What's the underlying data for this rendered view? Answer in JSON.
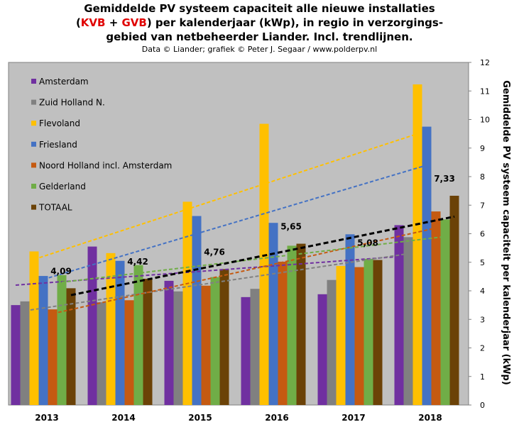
{
  "title": {
    "line1": "Gemiddelde  PV systeem capaciteit alle nieuwe installaties",
    "line2_open": "(",
    "line2_red1": "KVB",
    "line2_plus": " + ",
    "line2_red2": "GVB",
    "line2_rest": ") per kalenderjaar (kWp), in regio in verzorgings-",
    "line3": "gebied van netbeheerder Liander. Incl. trendlijnen."
  },
  "subtitle": "Data © Liander; grafiek © Peter J. Segaar / www.polderpv.nl",
  "chart_data": {
    "type": "bar",
    "categories": [
      "2013",
      "2014",
      "2015",
      "2016",
      "2017",
      "2018"
    ],
    "ylabel": "Gemiddelde PV systeem capaciteit per kalenderjaar (kWp)",
    "ylim": [
      0,
      12
    ],
    "yticks": [
      "0",
      "1",
      "2",
      "3",
      "4",
      "5",
      "6",
      "7",
      "8",
      "9",
      "10",
      "11",
      "12"
    ],
    "grid": false,
    "legend_position": "top-left",
    "series": [
      {
        "name": "Amsterdam",
        "color": "#7030a0",
        "values": [
          3.5,
          5.55,
          4.35,
          3.78,
          3.88,
          6.3
        ]
      },
      {
        "name": "Zuid Holland N.",
        "color": "#808080",
        "values": [
          3.63,
          3.6,
          3.98,
          4.07,
          4.38,
          5.88
        ]
      },
      {
        "name": "Flevoland",
        "color": "#ffc000",
        "values": [
          5.38,
          5.32,
          7.12,
          9.85,
          4.87,
          11.23
        ]
      },
      {
        "name": "Friesland",
        "color": "#4472c4",
        "values": [
          4.52,
          5.05,
          6.62,
          6.38,
          5.98,
          9.75
        ]
      },
      {
        "name": "Noord Holland incl. Amsterdam",
        "color": "#c55a11",
        "values": [
          3.35,
          3.67,
          4.18,
          5.02,
          4.83,
          6.78
        ]
      },
      {
        "name": "Gelderland",
        "color": "#70ad47",
        "values": [
          4.55,
          4.9,
          4.48,
          5.58,
          5.12,
          6.5
        ]
      },
      {
        "name": "TOTAAL",
        "color": "#6b4207",
        "values": [
          4.09,
          4.42,
          4.76,
          5.65,
          5.08,
          7.33
        ]
      }
    ],
    "total_labels": [
      "4,09",
      "4,42",
      "4,76",
      "5,65",
      "5,08",
      "7,33"
    ],
    "trendlines": [
      {
        "series": "Amsterdam",
        "color": "#7030a0",
        "start": 4.2,
        "end": 5.2
      },
      {
        "series": "Zuid Holland N.",
        "color": "#808080",
        "start": 3.3,
        "end": 5.3
      },
      {
        "series": "Flevoland",
        "color": "#ffc000",
        "start": 5.1,
        "end": 9.5
      },
      {
        "series": "Friesland",
        "color": "#4472c4",
        "start": 4.4,
        "end": 8.4
      },
      {
        "series": "Noord Holland incl. Amsterdam",
        "color": "#c55a11",
        "start": 3.2,
        "end": 6.2
      },
      {
        "series": "Gelderland",
        "color": "#70ad47",
        "start": 4.3,
        "end": 5.9
      },
      {
        "series": "TOTAAL",
        "color": "#000000",
        "start": 3.85,
        "end": 6.6
      }
    ],
    "colors": {
      "plot_bg": "#c0c0c0"
    }
  }
}
